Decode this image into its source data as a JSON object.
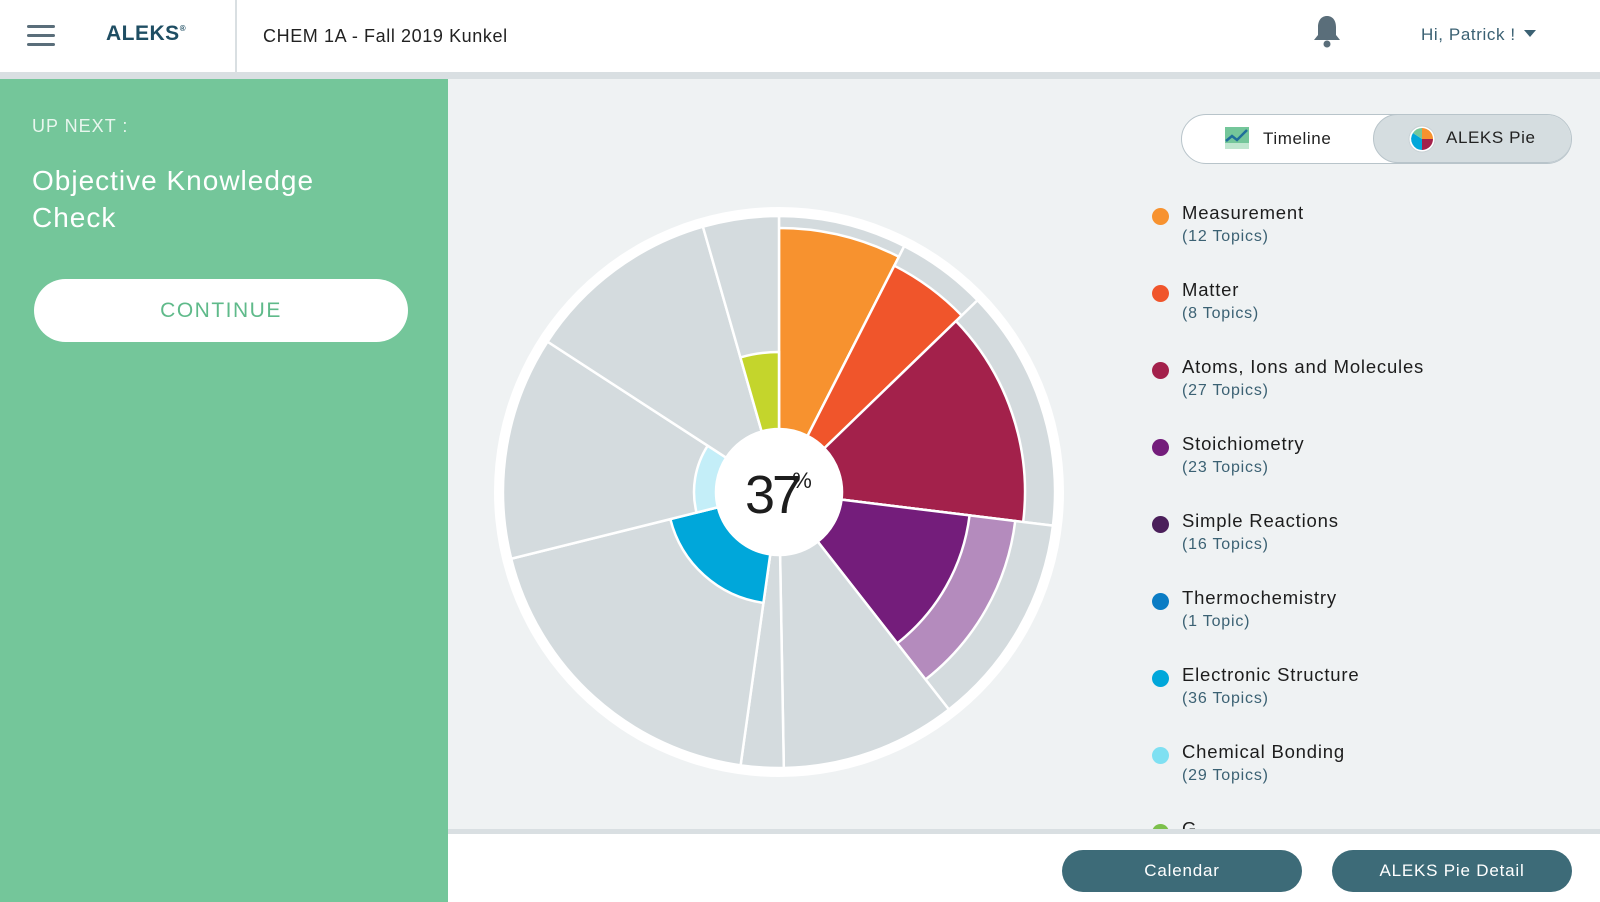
{
  "header": {
    "logo": "ALEKS",
    "logo_mark": "®",
    "course_title": "CHEM 1A - Fall 2019 Kunkel",
    "greeting": "Hi, Patrick !"
  },
  "sidebar": {
    "up_next_label": "UP NEXT :",
    "objective_title": "Objective Knowledge Check",
    "continue_label": "CONTINUE"
  },
  "view_toggle": {
    "timeline_label": "Timeline",
    "pie_label": "ALEKS Pie",
    "active": "ALEKS Pie"
  },
  "pie": {
    "percent_value": "37",
    "percent_symbol": "%",
    "colors": {
      "gray": "#d4dbde",
      "light_gray": "#e7ecee",
      "measurement": "#f7922f",
      "matter": "#f0552b",
      "atoms": "#a3214b",
      "stoich": "#741d7b",
      "stoich_light": "#b48bbd",
      "simple": "#4b1f5a",
      "thermo": "#0a7cc4",
      "electronic": "#00a7da",
      "bonding": "#c4eef8",
      "gases": "#c4d52c"
    }
  },
  "legend": [
    {
      "name": "Measurement",
      "count": "(12 Topics)",
      "color": "#f7922f"
    },
    {
      "name": "Matter",
      "count": "(8 Topics)",
      "color": "#f0552b"
    },
    {
      "name": "Atoms, Ions and Molecules",
      "count": "(27 Topics)",
      "color": "#a3214b"
    },
    {
      "name": "Stoichiometry",
      "count": "(23 Topics)",
      "color": "#741d7b"
    },
    {
      "name": "Simple Reactions",
      "count": "(16 Topics)",
      "color": "#4b1f5a"
    },
    {
      "name": "Thermochemistry",
      "count": "(1 Topic)",
      "color": "#0a7cc4"
    },
    {
      "name": "Electronic Structure",
      "count": "(36 Topics)",
      "color": "#00a7da"
    },
    {
      "name": "Chemical Bonding",
      "count": "(29 Topics)",
      "color": "#7fe0f2"
    },
    {
      "name": "G",
      "count": "",
      "color": "#7cc04b"
    }
  ],
  "footer": {
    "calendar_label": "Calendar",
    "pie_detail_label": "ALEKS Pie Detail"
  }
}
